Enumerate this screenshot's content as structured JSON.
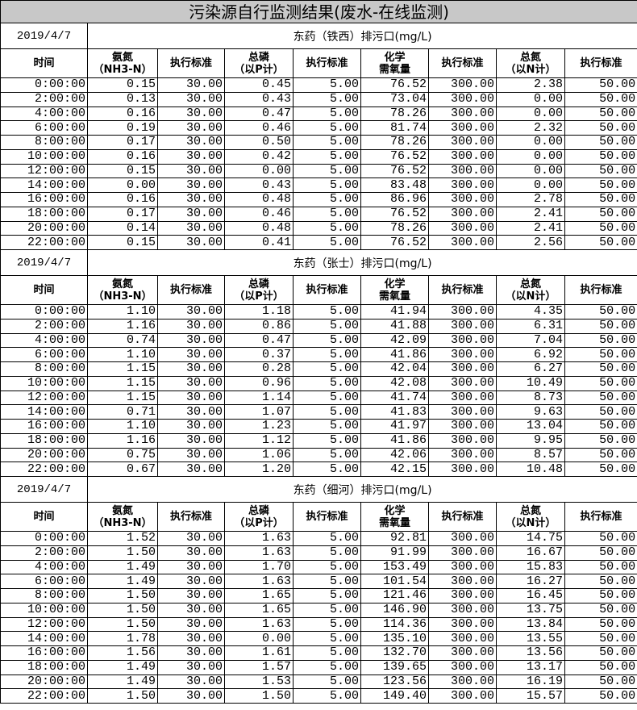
{
  "title": "污染源自行监测结果(废水-在线监测)",
  "headers": [
    "时间",
    "氨氮\n（NH3-N）",
    "执行标准",
    "总磷\n（以P计）",
    "执行标准",
    "化学\n需氧量",
    "执行标准",
    "总氮\n（以N计）",
    "执行标准"
  ],
  "sections": [
    {
      "date": "2019/4/7",
      "outlet": "东药（铁西）排污口(mg/L)",
      "rows": [
        [
          "0:00:00",
          "0.15",
          "30.00",
          "0.45",
          "5.00",
          "76.52",
          "300.00",
          "2.38",
          "50.00"
        ],
        [
          "2:00:00",
          "0.13",
          "30.00",
          "0.43",
          "5.00",
          "73.04",
          "300.00",
          "0.00",
          "50.00"
        ],
        [
          "4:00:00",
          "0.16",
          "30.00",
          "0.47",
          "5.00",
          "78.26",
          "300.00",
          "0.00",
          "50.00"
        ],
        [
          "6:00:00",
          "0.19",
          "30.00",
          "0.46",
          "5.00",
          "81.74",
          "300.00",
          "2.32",
          "50.00"
        ],
        [
          "8:00:00",
          "0.17",
          "30.00",
          "0.50",
          "5.00",
          "78.26",
          "300.00",
          "0.00",
          "50.00"
        ],
        [
          "10:00:00",
          "0.16",
          "30.00",
          "0.42",
          "5.00",
          "76.52",
          "300.00",
          "0.00",
          "50.00"
        ],
        [
          "12:00:00",
          "0.15",
          "30.00",
          "0.00",
          "5.00",
          "76.52",
          "300.00",
          "0.00",
          "50.00"
        ],
        [
          "14:00:00",
          "0.00",
          "30.00",
          "0.43",
          "5.00",
          "83.48",
          "300.00",
          "0.00",
          "50.00"
        ],
        [
          "16:00:00",
          "0.16",
          "30.00",
          "0.48",
          "5.00",
          "86.96",
          "300.00",
          "2.78",
          "50.00"
        ],
        [
          "18:00:00",
          "0.17",
          "30.00",
          "0.46",
          "5.00",
          "76.52",
          "300.00",
          "2.41",
          "50.00"
        ],
        [
          "20:00:00",
          "0.14",
          "30.00",
          "0.48",
          "5.00",
          "78.26",
          "300.00",
          "2.41",
          "50.00"
        ],
        [
          "22:00:00",
          "0.15",
          "30.00",
          "0.41",
          "5.00",
          "76.52",
          "300.00",
          "2.56",
          "50.00"
        ]
      ]
    },
    {
      "date": "2019/4/7",
      "outlet": "东药（张士）排污口(mg/L)",
      "rows": [
        [
          "0:00:00",
          "1.10",
          "30.00",
          "1.18",
          "5.00",
          "41.94",
          "300.00",
          "4.35",
          "50.00"
        ],
        [
          "2:00:00",
          "1.16",
          "30.00",
          "0.86",
          "5.00",
          "41.88",
          "300.00",
          "6.31",
          "50.00"
        ],
        [
          "4:00:00",
          "0.74",
          "30.00",
          "0.47",
          "5.00",
          "42.09",
          "300.00",
          "7.04",
          "50.00"
        ],
        [
          "6:00:00",
          "1.10",
          "30.00",
          "0.37",
          "5.00",
          "41.86",
          "300.00",
          "6.92",
          "50.00"
        ],
        [
          "8:00:00",
          "1.15",
          "30.00",
          "0.28",
          "5.00",
          "42.04",
          "300.00",
          "6.27",
          "50.00"
        ],
        [
          "10:00:00",
          "1.15",
          "30.00",
          "0.96",
          "5.00",
          "42.08",
          "300.00",
          "10.49",
          "50.00"
        ],
        [
          "12:00:00",
          "1.15",
          "30.00",
          "1.14",
          "5.00",
          "41.74",
          "300.00",
          "8.73",
          "50.00"
        ],
        [
          "14:00:00",
          "0.71",
          "30.00",
          "1.07",
          "5.00",
          "41.83",
          "300.00",
          "9.63",
          "50.00"
        ],
        [
          "16:00:00",
          "1.10",
          "30.00",
          "1.23",
          "5.00",
          "41.97",
          "300.00",
          "13.04",
          "50.00"
        ],
        [
          "18:00:00",
          "1.16",
          "30.00",
          "1.12",
          "5.00",
          "41.86",
          "300.00",
          "9.95",
          "50.00"
        ],
        [
          "20:00:00",
          "0.75",
          "30.00",
          "1.06",
          "5.00",
          "42.06",
          "300.00",
          "8.57",
          "50.00"
        ],
        [
          "22:00:00",
          "0.67",
          "30.00",
          "1.20",
          "5.00",
          "42.15",
          "300.00",
          "10.48",
          "50.00"
        ]
      ]
    },
    {
      "date": "2019/4/7",
      "outlet": "东药（细河）排污口(mg/L)",
      "rows": [
        [
          "0:00:00",
          "1.52",
          "30.00",
          "1.63",
          "5.00",
          "92.81",
          "300.00",
          "14.75",
          "50.00"
        ],
        [
          "2:00:00",
          "1.50",
          "30.00",
          "1.63",
          "5.00",
          "91.99",
          "300.00",
          "16.67",
          "50.00"
        ],
        [
          "4:00:00",
          "1.49",
          "30.00",
          "1.70",
          "5.00",
          "153.49",
          "300.00",
          "15.83",
          "50.00"
        ],
        [
          "6:00:00",
          "1.49",
          "30.00",
          "1.63",
          "5.00",
          "101.54",
          "300.00",
          "16.27",
          "50.00"
        ],
        [
          "8:00:00",
          "1.50",
          "30.00",
          "1.65",
          "5.00",
          "121.46",
          "300.00",
          "16.45",
          "50.00"
        ],
        [
          "10:00:00",
          "1.50",
          "30.00",
          "1.65",
          "5.00",
          "146.90",
          "300.00",
          "13.75",
          "50.00"
        ],
        [
          "12:00:00",
          "1.50",
          "30.00",
          "1.63",
          "5.00",
          "114.36",
          "300.00",
          "13.84",
          "50.00"
        ],
        [
          "14:00:00",
          "1.78",
          "30.00",
          "0.00",
          "5.00",
          "135.10",
          "300.00",
          "13.55",
          "50.00"
        ],
        [
          "16:00:00",
          "1.56",
          "30.00",
          "1.61",
          "5.00",
          "132.70",
          "300.00",
          "13.56",
          "50.00"
        ],
        [
          "18:00:00",
          "1.49",
          "30.00",
          "1.57",
          "5.00",
          "139.65",
          "300.00",
          "13.17",
          "50.00"
        ],
        [
          "20:00:00",
          "1.49",
          "30.00",
          "1.53",
          "5.00",
          "123.56",
          "300.00",
          "16.19",
          "50.00"
        ],
        [
          "22:00:00",
          "1.50",
          "30.00",
          "1.50",
          "5.00",
          "149.40",
          "300.00",
          "15.57",
          "50.00"
        ]
      ]
    }
  ]
}
